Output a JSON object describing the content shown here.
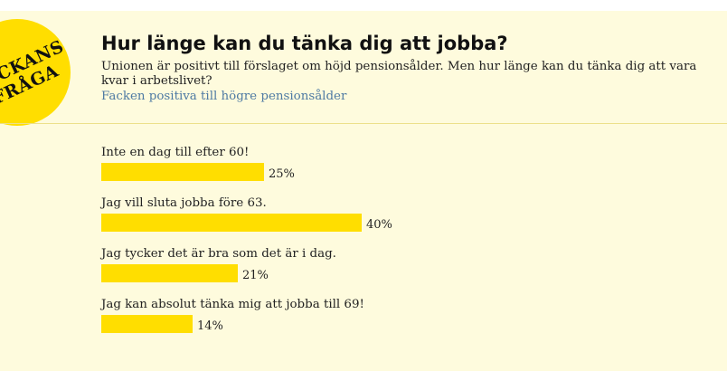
{
  "badge": {
    "line1": "ECKANS",
    "line2": "FRÅGA"
  },
  "header": {
    "title": "Hur länge kan du tänka dig att jobba?",
    "intro": "Unionen är positivt till förslaget om höjd pensionsålder. Men hur länge kan du tänka dig att vara kvar i arbetslivet?",
    "link_text": "Facken positiva till högre pensionsålder"
  },
  "colors": {
    "background": "#fefbdd",
    "bar": "#ffde00",
    "link": "#4e7aa3"
  },
  "options": [
    {
      "label": "Inte en dag till efter 60!",
      "percent": 25,
      "percent_label": "25%"
    },
    {
      "label": "Jag vill sluta jobba före 63.",
      "percent": 40,
      "percent_label": "40%"
    },
    {
      "label": "Jag tycker det är bra som det är i dag.",
      "percent": 21,
      "percent_label": "21%"
    },
    {
      "label": "Jag kan absolut tänka mig att jobba till 69!",
      "percent": 14,
      "percent_label": "14%"
    }
  ]
}
